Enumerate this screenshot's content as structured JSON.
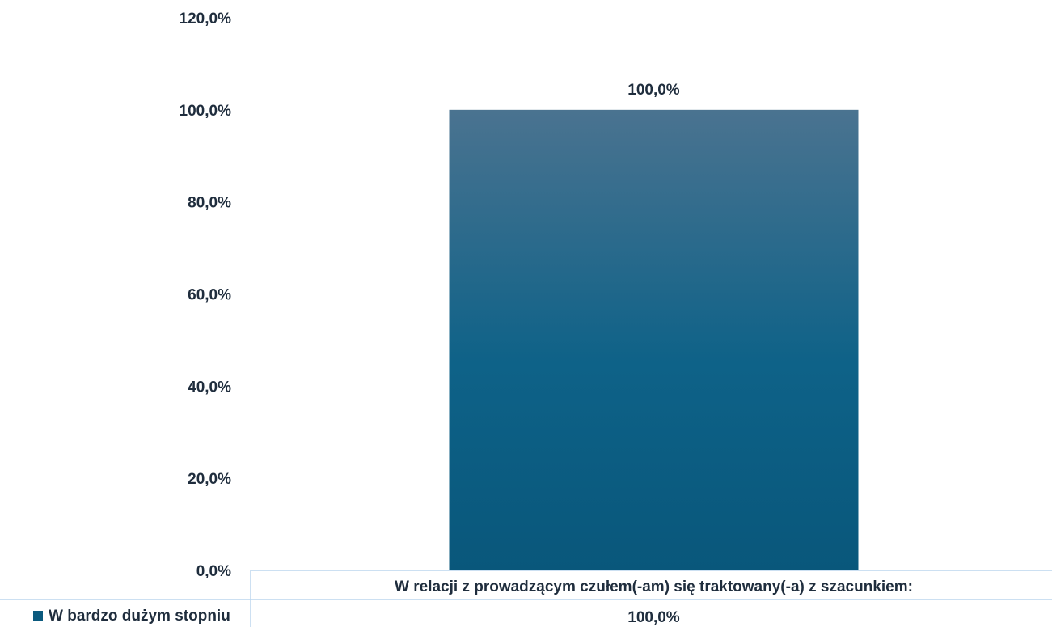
{
  "chart_data": {
    "type": "bar",
    "categories": [
      "W relacji z prowadzącym czułem(-am) się traktowany(-a) z szacunkiem:"
    ],
    "series": [
      {
        "name": "W bardzo dużym stopniu",
        "values": [
          100.0
        ],
        "color": "#0b5a7e"
      }
    ],
    "data_labels": [
      "100,0%"
    ],
    "y_ticks": [
      "0,0%",
      "20,0%",
      "40,0%",
      "60,0%",
      "80,0%",
      "100,0%",
      "120,0%"
    ],
    "ylim": [
      0,
      120
    ],
    "grid": false,
    "legend": "data-table-below",
    "data_table": {
      "rows": [
        {
          "legend_key": "W bardzo dużym stopniu",
          "cells": [
            "100,0%"
          ]
        }
      ]
    },
    "colors": {
      "bar_top": "#4a7390",
      "bar_bottom": "#09577b",
      "text": "#1f2d3d",
      "table_border": "#bcd6ee"
    }
  }
}
